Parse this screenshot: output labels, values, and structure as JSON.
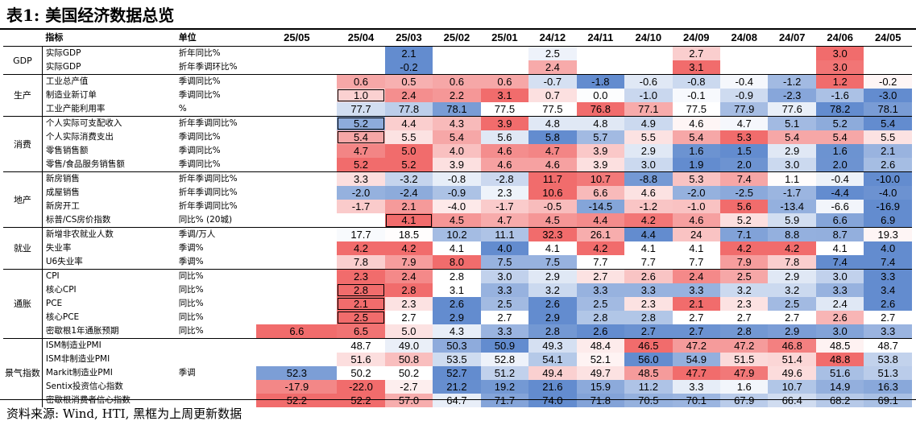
{
  "title": "表1: 美国经济数据总览",
  "footer": "资料来源: Wind, HTI, 黑框为上周更新数据",
  "header": {
    "indicator_label": "指标",
    "unit_label": "单位",
    "dates": [
      "25/05",
      "25/04",
      "25/03",
      "25/02",
      "25/01",
      "24/12",
      "24/11",
      "24/10",
      "24/09",
      "24/08",
      "24/07",
      "24/06",
      "24/05"
    ]
  },
  "groups": [
    {
      "name": "GDP",
      "rows": [
        {
          "indicator": "实际GDP",
          "unit": "折年同比%",
          "values": [
            "",
            "",
            "2.1",
            "",
            "",
            "2.5",
            "",
            "",
            "2.7",
            "",
            "",
            "3.0",
            ""
          ]
        },
        {
          "indicator": "实际GDP",
          "unit": "折年季调环比%",
          "values": [
            "",
            "",
            "-0.2",
            "",
            "",
            "2.4",
            "",
            "",
            "3.1",
            "",
            "",
            "3.0",
            ""
          ]
        }
      ]
    },
    {
      "name": "生产",
      "rows": [
        {
          "indicator": "工业总产值",
          "unit": "季调同比%",
          "values": [
            "",
            "0.6",
            "0.5",
            "0.6",
            "0.6",
            "-0.7",
            "-1.8",
            "-0.6",
            "-0.8",
            "-0.4",
            "-1.2",
            "1.2",
            "-0.2"
          ]
        },
        {
          "indicator": "制造业新订单",
          "unit": "季调同比%",
          "values": [
            "",
            "1.0",
            "2.4",
            "2.2",
            "3.1",
            "0.7",
            "0.0",
            "-1.0",
            "-0.1",
            "-0.9",
            "-2.3",
            "-1.6",
            "-3.0"
          ]
        },
        {
          "indicator": "工业产能利用率",
          "unit": "%",
          "values": [
            "",
            "77.7",
            "77.8",
            "78.1",
            "77.5",
            "77.5",
            "76.8",
            "77.1",
            "77.5",
            "77.9",
            "77.6",
            "78.2",
            "78.1"
          ]
        }
      ]
    },
    {
      "name": "消费",
      "rows": [
        {
          "indicator": "个人实际可支配收入",
          "unit": "折年季调同比%",
          "values": [
            "",
            "5.2",
            "4.4",
            "4.3",
            "3.9",
            "4.8",
            "4.8",
            "4.9",
            "4.6",
            "4.7",
            "5.1",
            "5.2",
            "5.4"
          ]
        },
        {
          "indicator": "个人实际消费支出",
          "unit": "季调同比%",
          "values": [
            "",
            "5.4",
            "5.5",
            "5.4",
            "5.6",
            "5.8",
            "5.7",
            "5.5",
            "5.4",
            "5.3",
            "5.4",
            "5.4",
            "5.5"
          ]
        },
        {
          "indicator": "零售销售额",
          "unit": "季调同比%",
          "values": [
            "",
            "4.7",
            "5.0",
            "4.0",
            "4.6",
            "4.7",
            "3.9",
            "2.9",
            "1.6",
            "1.5",
            "2.9",
            "1.6",
            "2.1"
          ]
        },
        {
          "indicator": "零售/食品服务销售额",
          "unit": "季调同比%",
          "values": [
            "",
            "5.2",
            "5.2",
            "3.9",
            "4.6",
            "4.6",
            "3.9",
            "3.0",
            "1.9",
            "2.0",
            "3.0",
            "2.0",
            "2.6"
          ]
        }
      ]
    },
    {
      "name": "地产",
      "rows": [
        {
          "indicator": "新房销售",
          "unit": "折年季调同比%",
          "values": [
            "",
            "3.3",
            "-3.2",
            "-0.8",
            "-2.8",
            "11.7",
            "10.7",
            "-8.8",
            "5.3",
            "7.4",
            "1.1",
            "-0.4",
            "-10.0"
          ]
        },
        {
          "indicator": "成屋销售",
          "unit": "折年季调同比%",
          "values": [
            "",
            "-2.0",
            "-2.4",
            "-0.9",
            "2.3",
            "10.6",
            "6.6",
            "4.6",
            "-2.0",
            "-2.5",
            "-1.7",
            "-4.4",
            "-4.0"
          ]
        },
        {
          "indicator": "新房开工",
          "unit": "折年季调同比%",
          "values": [
            "",
            "-1.7",
            "2.1",
            "-4.0",
            "-1.7",
            "-0.5",
            "-14.5",
            "-1.2",
            "-1.0",
            "5.6",
            "-13.4",
            "-6.6",
            "-16.9"
          ]
        },
        {
          "indicator": "标普/CS房价指数",
          "unit": "同比% (20城)",
          "values": [
            "",
            "",
            "4.1",
            "4.5",
            "4.7",
            "4.5",
            "4.4",
            "4.2",
            "4.6",
            "5.2",
            "5.9",
            "6.6",
            "6.9"
          ]
        }
      ]
    },
    {
      "name": "就业",
      "rows": [
        {
          "indicator": "新增非农就业人数",
          "unit": "季调/万人",
          "values": [
            "",
            "17.7",
            "18.5",
            "10.2",
            "11.1",
            "32.3",
            "26.1",
            "4.4",
            "24",
            "7.1",
            "8.8",
            "8.7",
            "19.3"
          ]
        },
        {
          "indicator": "失业率",
          "unit": "季调%",
          "values": [
            "",
            "4.2",
            "4.2",
            "4.1",
            "4.0",
            "4.1",
            "4.2",
            "4.1",
            "4.1",
            "4.2",
            "4.2",
            "4.1",
            "4.0"
          ]
        },
        {
          "indicator": "U6失业率",
          "unit": "季调%",
          "values": [
            "",
            "7.8",
            "7.9",
            "8.0",
            "7.5",
            "7.5",
            "7.7",
            "7.7",
            "7.7",
            "7.9",
            "7.8",
            "7.4",
            "7.4"
          ]
        }
      ]
    },
    {
      "name": "通胀",
      "rows": [
        {
          "indicator": "CPI",
          "unit": "同比%",
          "values": [
            "",
            "2.3",
            "2.4",
            "2.8",
            "3.0",
            "2.9",
            "2.7",
            "2.6",
            "2.4",
            "2.5",
            "2.9",
            "3.0",
            "3.3"
          ]
        },
        {
          "indicator": "核心CPI",
          "unit": "同比%",
          "values": [
            "",
            "2.8",
            "2.8",
            "3.1",
            "3.3",
            "3.2",
            "3.3",
            "3.3",
            "3.3",
            "3.2",
            "3.2",
            "3.3",
            "3.4"
          ]
        },
        {
          "indicator": "PCE",
          "unit": "同比%",
          "values": [
            "",
            "2.1",
            "2.3",
            "2.6",
            "2.5",
            "2.6",
            "2.5",
            "2.3",
            "2.1",
            "2.3",
            "2.5",
            "2.4",
            "2.6"
          ]
        },
        {
          "indicator": "核心PCE",
          "unit": "同比%",
          "values": [
            "",
            "2.5",
            "2.7",
            "2.9",
            "2.7",
            "2.9",
            "2.8",
            "2.8",
            "2.7",
            "2.7",
            "2.7",
            "2.6",
            "2.7"
          ]
        },
        {
          "indicator": "密歇根1年通胀预期",
          "unit": "同比%",
          "values": [
            "6.6",
            "6.5",
            "5.0",
            "4.3",
            "3.3",
            "2.8",
            "2.6",
            "2.7",
            "2.7",
            "2.8",
            "2.9",
            "3.0",
            "3.3"
          ]
        }
      ]
    },
    {
      "name": "景气指数",
      "rows": [
        {
          "indicator": "ISM制造业PMI",
          "unit": "",
          "values": [
            "",
            "48.7",
            "49.0",
            "50.3",
            "50.9",
            "49.3",
            "48.4",
            "46.5",
            "47.2",
            "47.2",
            "46.8",
            "48.5",
            "48.7"
          ]
        },
        {
          "indicator": "ISM非制造业PMI",
          "unit": "",
          "values": [
            "",
            "51.6",
            "50.8",
            "53.5",
            "52.8",
            "54.1",
            "52.1",
            "56.0",
            "54.9",
            "51.5",
            "51.4",
            "48.8",
            "53.8"
          ]
        },
        {
          "indicator": "Markit制造业PMI",
          "unit": "季调",
          "values": [
            "52.3",
            "50.2",
            "50.2",
            "52.7",
            "51.2",
            "49.4",
            "49.7",
            "48.5",
            "47.7",
            "47.9",
            "49.6",
            "51.6",
            "51.3"
          ]
        },
        {
          "indicator": "Sentix投资信心指数",
          "unit": "",
          "values": [
            "-17.9",
            "-22.0",
            "-2.7",
            "21.2",
            "19.2",
            "21.6",
            "15.9",
            "11.2",
            "3.3",
            "1.6",
            "10.7",
            "14.9",
            "16.3"
          ]
        },
        {
          "indicator": "密歇根消费者信心指数",
          "unit": "",
          "values": [
            "52.2",
            "52.2",
            "57.0",
            "64.7",
            "71.7",
            "74.0",
            "71.8",
            "70.5",
            "70.1",
            "67.9",
            "66.4",
            "68.2",
            "69.1"
          ]
        }
      ]
    }
  ],
  "colors": {
    "red": "#f06464",
    "blue": "#5b86cc",
    "white": "#ffffff"
  }
}
